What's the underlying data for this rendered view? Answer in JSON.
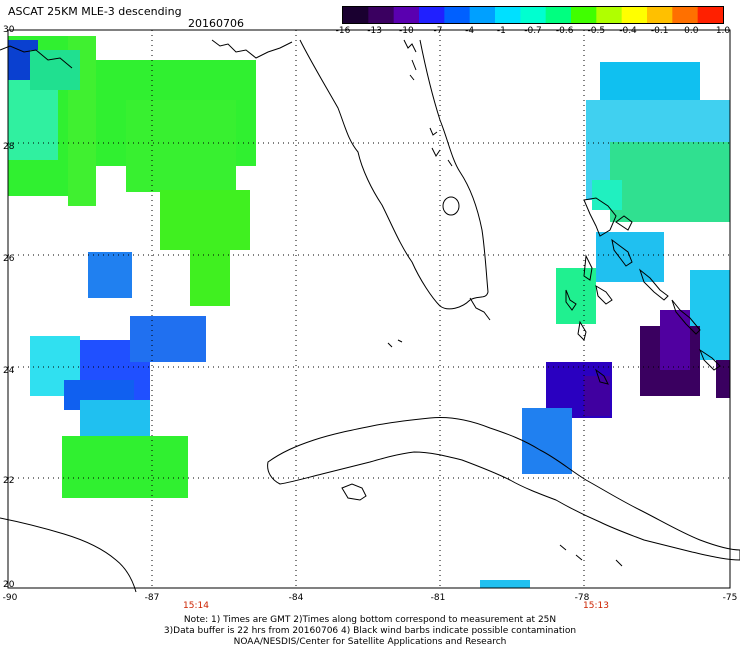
{
  "header": {
    "title": "ASCAT 25KM MLE-3 descending",
    "date": "20160706"
  },
  "colorbar": {
    "colors": [
      "#1a0030",
      "#3a0060",
      "#5a00b0",
      "#2020ff",
      "#0060ff",
      "#00a0ff",
      "#00e0ff",
      "#00ffd0",
      "#00ff80",
      "#40ff00",
      "#b0ff00",
      "#ffff00",
      "#ffc000",
      "#ff7000",
      "#ff2000"
    ],
    "ticks": [
      "-16",
      "-13",
      "-10",
      "-7",
      "-4",
      "-1",
      "-0.7",
      "-0.6",
      "-0.5",
      "-0.4",
      "-0.1",
      "0.0",
      "1.0"
    ]
  },
  "axes": {
    "lat_labels": [
      "30",
      "28",
      "26",
      "24",
      "22",
      "20"
    ],
    "lon_labels": [
      "-90",
      "-87",
      "-84",
      "-81",
      "-78",
      "-75"
    ]
  },
  "swath_times": [
    "15:14",
    "15:13"
  ],
  "notes": {
    "line1": "Note: 1) Times are GMT 2)Times along bottom correspond to measurement at 25N",
    "line2": "3)Data buffer is 22 hrs from 20160706 4) Black wind barbs indicate possible contamination",
    "line3": "NOAA/NESDIS/Center for Satellite Applications and Research"
  }
}
